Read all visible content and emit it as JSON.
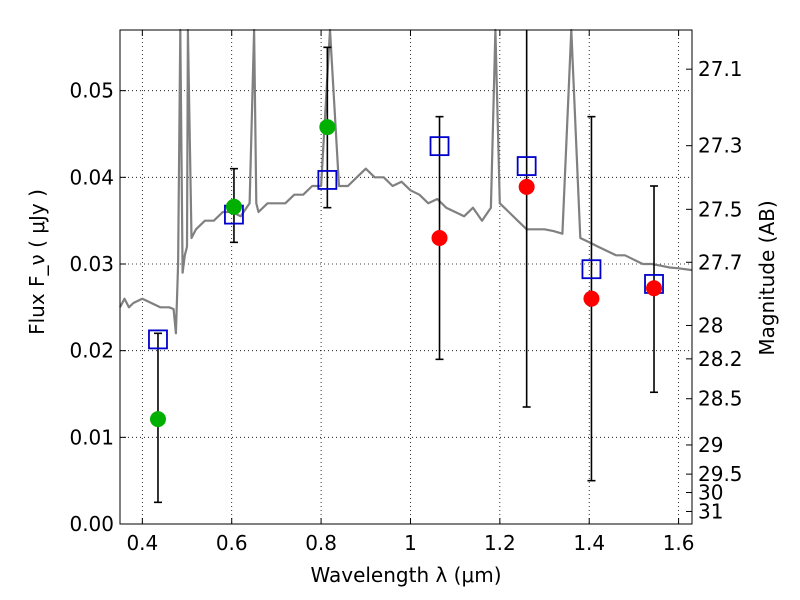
{
  "chart_data": {
    "type": "scatter",
    "xlabel": "Wavelength  λ (μm)",
    "ylabel": "Flux  F_ν  ( μJy )",
    "y2label": "Magnitude (AB)",
    "xlim": [
      0.35,
      1.63
    ],
    "ylim": [
      0.0,
      0.057
    ],
    "grid": true,
    "x_ticks": [
      "0.4",
      "0.6",
      "0.8",
      "1",
      "1.2",
      "1.4",
      "1.6"
    ],
    "x_tick_values": [
      0.4,
      0.6,
      0.8,
      1.0,
      1.2,
      1.4,
      1.6
    ],
    "y_ticks": [
      "0.00",
      "0.01",
      "0.02",
      "0.03",
      "0.04",
      "0.05"
    ],
    "y_tick_values": [
      0.0,
      0.01,
      0.02,
      0.03,
      0.04,
      0.05
    ],
    "y2_ticks": [
      "27.1",
      "27.3",
      "27.5",
      "27.7",
      "28",
      "28.2",
      "28.5",
      "29",
      "29.5",
      "30",
      "31"
    ],
    "y2_tick_values": [
      27.1,
      27.3,
      27.5,
      27.7,
      28.0,
      28.2,
      28.5,
      29.0,
      29.5,
      30.0,
      31.0
    ],
    "colors": {
      "model": "#808080",
      "green": "#00b000",
      "red": "#ff0000",
      "square": "#0000cc",
      "errorbar": "#000000"
    },
    "series": [
      {
        "type": "line",
        "x": [
          0.35,
          0.36,
          0.37,
          0.38,
          0.4,
          0.42,
          0.44,
          0.46,
          0.47,
          0.475,
          0.48,
          0.485,
          0.49,
          0.495,
          0.5,
          0.502,
          0.51,
          0.52,
          0.54,
          0.56,
          0.58,
          0.6,
          0.62,
          0.64,
          0.65,
          0.655,
          0.66,
          0.68,
          0.7,
          0.72,
          0.74,
          0.76,
          0.78,
          0.8,
          0.82,
          0.84,
          0.86,
          0.88,
          0.9,
          0.92,
          0.94,
          0.96,
          0.98,
          1.0,
          1.02,
          1.04,
          1.06,
          1.08,
          1.1,
          1.12,
          1.14,
          1.16,
          1.18,
          1.19,
          1.2,
          1.22,
          1.24,
          1.26,
          1.28,
          1.3,
          1.32,
          1.34,
          1.36,
          1.38,
          1.4,
          1.42,
          1.44,
          1.46,
          1.48,
          1.5,
          1.52,
          1.54,
          1.56,
          1.58,
          1.6,
          1.63
        ],
        "values": [
          0.025,
          0.026,
          0.025,
          0.0255,
          0.026,
          0.0255,
          0.025,
          0.025,
          0.0248,
          0.022,
          0.03,
          0.057,
          0.029,
          0.031,
          0.032,
          0.057,
          0.033,
          0.034,
          0.035,
          0.035,
          0.036,
          0.036,
          0.0355,
          0.037,
          0.057,
          0.037,
          0.036,
          0.037,
          0.037,
          0.037,
          0.038,
          0.038,
          0.039,
          0.039,
          0.057,
          0.039,
          0.039,
          0.04,
          0.041,
          0.04,
          0.04,
          0.039,
          0.0395,
          0.0385,
          0.038,
          0.037,
          0.0375,
          0.0365,
          0.036,
          0.0355,
          0.0365,
          0.035,
          0.0365,
          0.057,
          0.037,
          0.036,
          0.035,
          0.034,
          0.034,
          0.034,
          0.0338,
          0.0335,
          0.057,
          0.033,
          0.0325,
          0.032,
          0.0315,
          0.031,
          0.031,
          0.0305,
          0.03,
          0.03,
          0.0298,
          0.0296,
          0.0295,
          0.0293
        ]
      },
      {
        "type": "errorbar",
        "x": [
          0.435,
          0.605,
          0.814,
          1.065,
          1.26,
          1.405,
          1.545
        ],
        "ylow": [
          0.0025,
          0.0325,
          0.0365,
          0.019,
          0.0135,
          0.005,
          0.0152
        ],
        "yhigh": [
          0.022,
          0.041,
          0.055,
          0.047,
          0.057,
          0.047,
          0.039
        ]
      },
      {
        "type": "squares",
        "x": [
          0.435,
          0.605,
          0.814,
          1.065,
          1.26,
          1.405,
          1.545
        ],
        "values": [
          0.0213,
          0.0357,
          0.0397,
          0.0436,
          0.0413,
          0.0294,
          0.0277
        ]
      },
      {
        "type": "green-points",
        "x": [
          0.435,
          0.605,
          0.814
        ],
        "values": [
          0.0121,
          0.0366,
          0.0458
        ]
      },
      {
        "type": "red-points",
        "x": [
          1.065,
          1.26,
          1.405,
          1.545
        ],
        "values": [
          0.033,
          0.0389,
          0.026,
          0.0272
        ]
      }
    ]
  }
}
